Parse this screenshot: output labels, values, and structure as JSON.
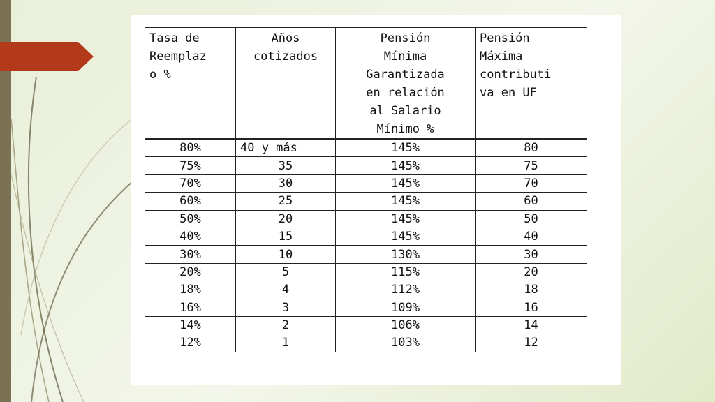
{
  "table": {
    "headers": [
      "Tasa de\nReemplaz\no %",
      "Años\ncotizados",
      "Pensión\nMínima\nGarantizada\nen relación\nal Salario\nMínimo %",
      "Pensión\nMáxima\ncontributi\nva en UF"
    ],
    "rows": [
      [
        "80%",
        "40 y más",
        "145%",
        "80"
      ],
      [
        "75%",
        "35",
        "145%",
        "75"
      ],
      [
        "70%",
        "30",
        "145%",
        "70"
      ],
      [
        "60%",
        "25",
        "145%",
        "60"
      ],
      [
        "50%",
        "20",
        "145%",
        "50"
      ],
      [
        "40%",
        "15",
        "145%",
        "40"
      ],
      [
        "30%",
        "10",
        "130%",
        "30"
      ],
      [
        "20%",
        "5",
        "115%",
        "20"
      ],
      [
        "18%",
        "4",
        "112%",
        "18"
      ],
      [
        "16%",
        "3",
        "109%",
        "16"
      ],
      [
        "14%",
        "2",
        "106%",
        "14"
      ],
      [
        "12%",
        "1",
        "103%",
        "12"
      ]
    ]
  },
  "colors": {
    "background": "#eef2e0",
    "left_bar": "#7b7155",
    "arrow": "#b23a1a",
    "swirl": "#6e6a4c",
    "card": "#ffffff"
  }
}
